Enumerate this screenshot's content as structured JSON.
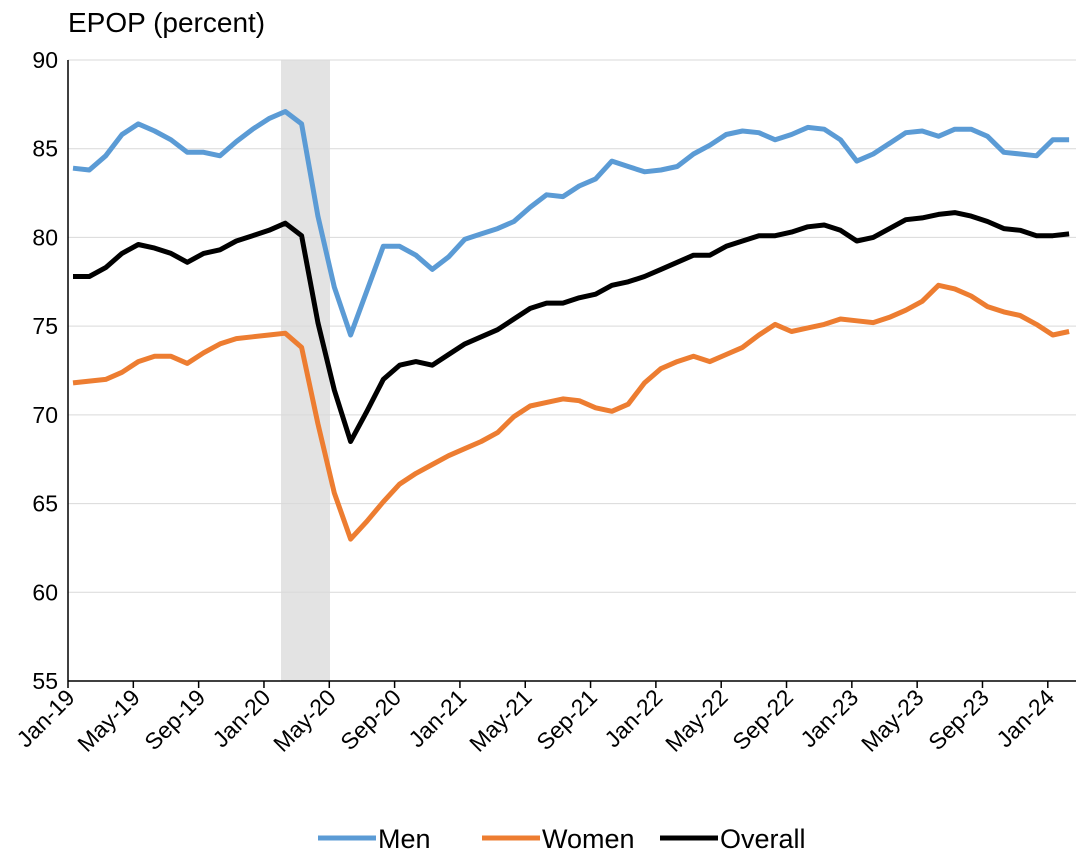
{
  "chart_data": {
    "type": "line",
    "title": "EPOP (percent)",
    "categories": [
      "Jan-19",
      null,
      null,
      null,
      "May-19",
      null,
      null,
      null,
      "Sep-19",
      null,
      null,
      null,
      "Jan-20",
      null,
      null,
      null,
      "May-20",
      null,
      null,
      null,
      "Sep-20",
      null,
      null,
      null,
      "Jan-21",
      null,
      null,
      null,
      "May-21",
      null,
      null,
      null,
      "Sep-21",
      null,
      null,
      null,
      "Jan-22",
      null,
      null,
      null,
      "May-22",
      null,
      null,
      null,
      "Sep-22",
      null,
      null,
      null,
      "Jan-23",
      null,
      null,
      null,
      "May-23",
      null,
      null,
      null,
      "Sep-23",
      null,
      null,
      null,
      "Jan-24",
      null
    ],
    "series": [
      {
        "name": "Men",
        "color": "#5b9bd5",
        "values": [
          83.9,
          83.8,
          84.6,
          85.8,
          86.4,
          86.0,
          85.5,
          84.8,
          84.8,
          84.6,
          85.4,
          86.1,
          86.7,
          87.1,
          86.4,
          81.2,
          77.2,
          74.5,
          77.0,
          79.5,
          79.5,
          79.0,
          78.2,
          78.9,
          79.9,
          80.2,
          80.5,
          80.9,
          81.7,
          82.4,
          82.3,
          82.9,
          83.3,
          84.3,
          84.0,
          83.7,
          83.8,
          84.0,
          84.7,
          85.2,
          85.8,
          86.0,
          85.9,
          85.5,
          85.8,
          86.2,
          86.1,
          85.5,
          84.3,
          84.7,
          85.3,
          85.9,
          86.0,
          85.7,
          86.1,
          86.1,
          85.7,
          84.8,
          84.7,
          84.6,
          85.5,
          85.5
        ]
      },
      {
        "name": "Women",
        "color": "#ed7d31",
        "values": [
          71.8,
          71.9,
          72.0,
          72.4,
          73.0,
          73.3,
          73.3,
          72.9,
          73.5,
          74.0,
          74.3,
          74.4,
          74.5,
          74.6,
          73.8,
          69.5,
          65.6,
          63.0,
          64.0,
          65.1,
          66.1,
          66.7,
          67.2,
          67.7,
          68.1,
          68.5,
          69.0,
          69.9,
          70.5,
          70.7,
          70.9,
          70.8,
          70.4,
          70.2,
          70.6,
          71.8,
          72.6,
          73.0,
          73.3,
          73.0,
          73.4,
          73.8,
          74.5,
          75.1,
          74.7,
          74.9,
          75.1,
          75.4,
          75.3,
          75.2,
          75.5,
          75.9,
          76.4,
          77.3,
          77.1,
          76.7,
          76.1,
          75.8,
          75.6,
          75.1,
          74.5,
          74.7
        ]
      },
      {
        "name": "Overall",
        "color": "#000000",
        "values": [
          77.8,
          77.8,
          78.3,
          79.1,
          79.6,
          79.4,
          79.1,
          78.6,
          79.1,
          79.3,
          79.8,
          80.1,
          80.4,
          80.8,
          80.1,
          75.2,
          71.4,
          68.5,
          70.2,
          72.0,
          72.8,
          73.0,
          72.8,
          73.4,
          74.0,
          74.4,
          74.8,
          75.4,
          76.0,
          76.3,
          76.3,
          76.6,
          76.8,
          77.3,
          77.5,
          77.8,
          78.2,
          78.6,
          79.0,
          79.0,
          79.5,
          79.8,
          80.1,
          80.1,
          80.3,
          80.6,
          80.7,
          80.4,
          79.8,
          80.0,
          80.5,
          81.0,
          81.1,
          81.3,
          81.4,
          81.2,
          80.9,
          80.5,
          80.4,
          80.1,
          80.1,
          80.2
        ]
      }
    ],
    "ylim": [
      55,
      90
    ],
    "yticks": [
      55,
      60,
      65,
      70,
      75,
      80,
      85,
      90
    ],
    "grid": true
  }
}
